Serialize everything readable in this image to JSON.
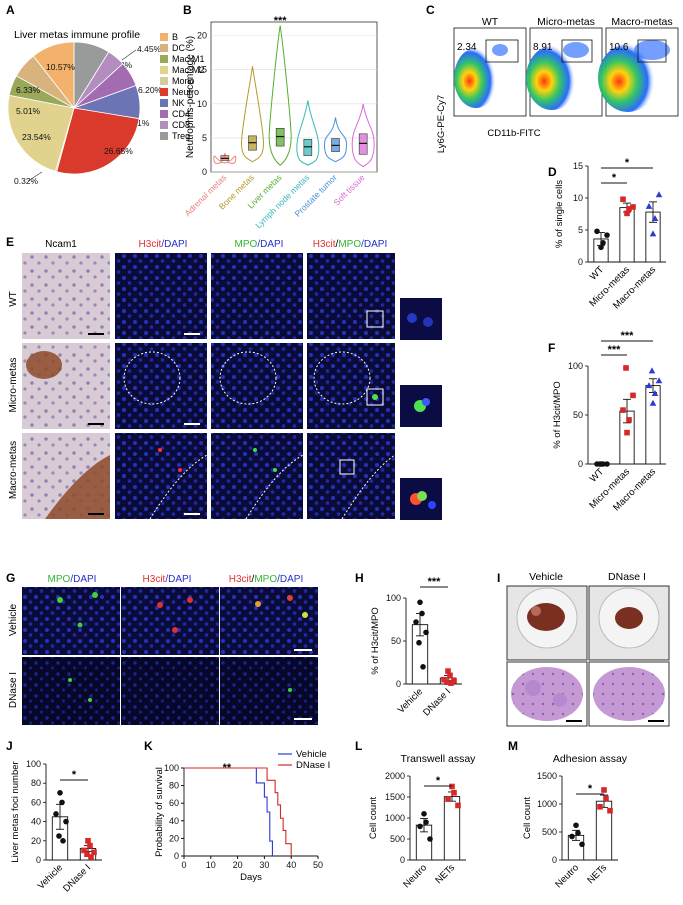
{
  "panels": {
    "A": "A",
    "B": "B",
    "C": "C",
    "D": "D",
    "E": "E",
    "F": "F",
    "G": "G",
    "H": "H",
    "I": "I",
    "J": "J",
    "K": "K",
    "L": "L",
    "M": "M"
  },
  "colors": {
    "B": "#f2b26b",
    "DC": "#d8b37d",
    "Mac-M1": "#9aa85a",
    "Mac-M2": "#e1d28e",
    "Mono": "#d4cc9a",
    "Neutro": "#d93a2b",
    "NK": "#6d74b5",
    "CD4": "#a36bb0",
    "CD8": "#b48dbf",
    "Treg": "#999a9a",
    "red": "#d62828",
    "blue": "#2b3bd6",
    "black": "#111111"
  },
  "chart_data": [
    {
      "panel": "A",
      "type": "pie",
      "title": "Liver metas immune profile",
      "slices": [
        {
          "label": "Treg",
          "value": 8.83,
          "text": "8.83%"
        },
        {
          "label": "CD8",
          "value": 4.45,
          "text": "4.45%"
        },
        {
          "label": "CD4",
          "value": 6.2,
          "text": "6.20%"
        },
        {
          "label": "NK",
          "value": 8.11,
          "text": "8.11%"
        },
        {
          "label": "Neutro",
          "value": 26.65,
          "text": "26.65%"
        },
        {
          "label": "Mono",
          "value": 0.32,
          "text": "0.32%"
        },
        {
          "label": "Mac-M2",
          "value": 23.54,
          "text": "23.54%"
        },
        {
          "label": "Mac-M1",
          "value": 5.01,
          "text": "5.01%"
        },
        {
          "label": "DC",
          "value": 6.33,
          "text": "6.33%"
        },
        {
          "label": "B",
          "value": 10.57,
          "text": "10.57%"
        }
      ],
      "legend": [
        "B",
        "DC",
        "Mac-M1",
        "Mac-M2",
        "Mono",
        "Neutro",
        "NK",
        "CD4",
        "CD8",
        "Treg"
      ]
    },
    {
      "panel": "B",
      "type": "violin",
      "ylabel": "Neutrophils-percentage (%)",
      "ylim": [
        0,
        22
      ],
      "yticks": [
        "0",
        "5",
        "10",
        "15",
        "20"
      ],
      "significance": "***",
      "categories": [
        "Adrenal metas",
        "Bone metas",
        "Liver metas",
        "Lymph node metas",
        "Prostate tumor",
        "Soft tissue"
      ],
      "colors": [
        "#e9857a",
        "#b59b2b",
        "#55ad2f",
        "#3bb8b8",
        "#4a90d9",
        "#d86bd6"
      ],
      "median": [
        2.0,
        4.3,
        5.2,
        3.7,
        3.9,
        4.2
      ],
      "q1": [
        1.7,
        3.2,
        3.8,
        2.4,
        3.0,
        2.6
      ],
      "q3": [
        2.4,
        5.3,
        6.4,
        4.8,
        4.9,
        5.6
      ],
      "min": [
        1.3,
        1.5,
        1.0,
        1.0,
        1.5,
        0.8
      ],
      "max": [
        2.8,
        15.5,
        21.5,
        10.5,
        8.0,
        10.0
      ]
    },
    {
      "panel": "C",
      "type": "flow-cytometry",
      "ylabel": "Ly6G-PE-Cy7",
      "xlabel": "CD11b-FITC",
      "plots": [
        {
          "title": "WT",
          "gate": "2.34"
        },
        {
          "title": "Micro-metas",
          "gate": "8.91"
        },
        {
          "title": "Macro-metas",
          "gate": "10.6"
        }
      ]
    },
    {
      "panel": "D",
      "type": "bar-scatter",
      "ylabel": "% of single cells",
      "ylim": [
        0,
        15
      ],
      "yticks": [
        "0",
        "5",
        "10",
        "15"
      ],
      "categories": [
        "WT",
        "Micro-metas",
        "Macro-metas"
      ],
      "means": [
        3.6,
        8.5,
        7.8
      ],
      "sem": [
        1.0,
        0.7,
        1.6
      ],
      "points": [
        [
          2.3,
          3.0,
          4.8,
          4.2
        ],
        [
          7.6,
          8.3,
          9.8,
          8.6
        ],
        [
          4.4,
          6.8,
          8.7,
          10.5
        ]
      ],
      "significance": [
        {
          "from": 0,
          "to": 1,
          "text": "*"
        },
        {
          "from": 0,
          "to": 2,
          "text": "*"
        }
      ]
    },
    {
      "panel": "F",
      "type": "bar-scatter",
      "ylabel": "% of H3cit/MPO",
      "ylim": [
        0,
        100
      ],
      "yticks": [
        "0",
        "50",
        "100"
      ],
      "categories": [
        "WT",
        "Micro-metas",
        "Macro-metas"
      ],
      "means": [
        0,
        54,
        80
      ],
      "sem": [
        0,
        12,
        7
      ],
      "points": [
        [
          0,
          0,
          0,
          0,
          0
        ],
        [
          32,
          45,
          55,
          70,
          98
        ],
        [
          62,
          72,
          80,
          85,
          95
        ]
      ],
      "significance": [
        {
          "from": 0,
          "to": 1,
          "text": "***"
        },
        {
          "from": 0,
          "to": 2,
          "text": "***"
        }
      ]
    },
    {
      "panel": "H",
      "type": "bar-scatter",
      "ylabel": "% of H3cit/MPO",
      "ylim": [
        0,
        100
      ],
      "yticks": [
        "0",
        "50",
        "100"
      ],
      "categories": [
        "Vehicle",
        "DNase I"
      ],
      "means": [
        69,
        7
      ],
      "sem": [
        13,
        3
      ],
      "points": [
        [
          95,
          82,
          72,
          60,
          48,
          20
        ],
        [
          15,
          10,
          5,
          4,
          2,
          1
        ]
      ],
      "significance": [
        {
          "from": 0,
          "to": 1,
          "text": "***"
        }
      ]
    },
    {
      "panel": "J",
      "type": "bar-scatter",
      "ylabel": "Liver metas foci number",
      "ylim": [
        0,
        100
      ],
      "yticks": [
        "0",
        "20",
        "40",
        "60",
        "80",
        "100"
      ],
      "categories": [
        "Vehicle",
        "DNase I"
      ],
      "means": [
        45,
        12
      ],
      "sem": [
        13,
        3
      ],
      "points": [
        [
          70,
          60,
          48,
          40,
          25,
          20
        ],
        [
          20,
          15,
          10,
          8,
          6,
          3
        ]
      ],
      "significance": [
        {
          "from": 0,
          "to": 1,
          "text": "*"
        }
      ]
    },
    {
      "panel": "K",
      "type": "line",
      "ylabel": "Probability of survival",
      "xlabel": "Days",
      "xlim": [
        0,
        50
      ],
      "ylim": [
        0,
        100
      ],
      "xticks": [
        "0",
        "10",
        "20",
        "30",
        "40",
        "50"
      ],
      "yticks": [
        "0",
        "20",
        "40",
        "60",
        "80",
        "100"
      ],
      "significance": "**",
      "series": [
        {
          "name": "Vehicle",
          "x": [
            0,
            27,
            27,
            30,
            30,
            31,
            31,
            32,
            32,
            33,
            33
          ],
          "y": [
            100,
            100,
            83,
            83,
            67,
            67,
            50,
            50,
            17,
            17,
            0
          ]
        },
        {
          "name": "DNase I",
          "x": [
            0,
            31,
            31,
            34,
            34,
            35,
            35,
            36,
            36,
            37,
            37,
            38,
            38,
            40,
            40
          ],
          "y": [
            100,
            100,
            86,
            86,
            72,
            72,
            58,
            58,
            43,
            43,
            29,
            29,
            14,
            14,
            0
          ]
        }
      ]
    },
    {
      "panel": "L",
      "type": "bar-scatter",
      "title": "Transwell assay",
      "ylabel": "Cell count",
      "ylim": [
        0,
        2000
      ],
      "yticks": [
        "0",
        "500",
        "1000",
        "1500",
        "2000"
      ],
      "categories": [
        "Neutro",
        "NETs"
      ],
      "means": [
        830,
        1510
      ],
      "sem": [
        160,
        110
      ],
      "points": [
        [
          1100,
          900,
          800,
          500
        ],
        [
          1750,
          1600,
          1450,
          1300
        ]
      ],
      "significance": [
        {
          "from": 0,
          "to": 1,
          "text": "*"
        }
      ]
    },
    {
      "panel": "M",
      "type": "bar-scatter",
      "title": "Adhesion assay",
      "ylabel": "Cell count",
      "ylim": [
        0,
        1500
      ],
      "yticks": [
        "0",
        "500",
        "1000",
        "1500"
      ],
      "categories": [
        "Neutro",
        "NETs"
      ],
      "means": [
        440,
        1050
      ],
      "sem": [
        90,
        110
      ],
      "points": [
        [
          620,
          480,
          420,
          280
        ],
        [
          1250,
          1100,
          950,
          880
        ]
      ],
      "significance": [
        {
          "from": 0,
          "to": 1,
          "text": "*"
        }
      ]
    }
  ],
  "panel_E": {
    "columns": [
      "Ncam1",
      "H3cit",
      "/DAPI",
      "MPO",
      "/DAPI",
      "H3cit",
      "/",
      "MPO",
      "/DAPI"
    ],
    "rows": [
      "WT",
      "Micro-metas",
      "Macro-metas"
    ]
  },
  "panel_G": {
    "columns": [
      "MPO",
      "/DAPI",
      "H3cit",
      "/DAPI",
      "H3cit",
      "/",
      "MPO",
      "/DAPI"
    ],
    "rows": [
      "Vehicle",
      "DNase I"
    ]
  },
  "panel_I": {
    "columns": [
      "Vehicle",
      "DNase I"
    ]
  }
}
